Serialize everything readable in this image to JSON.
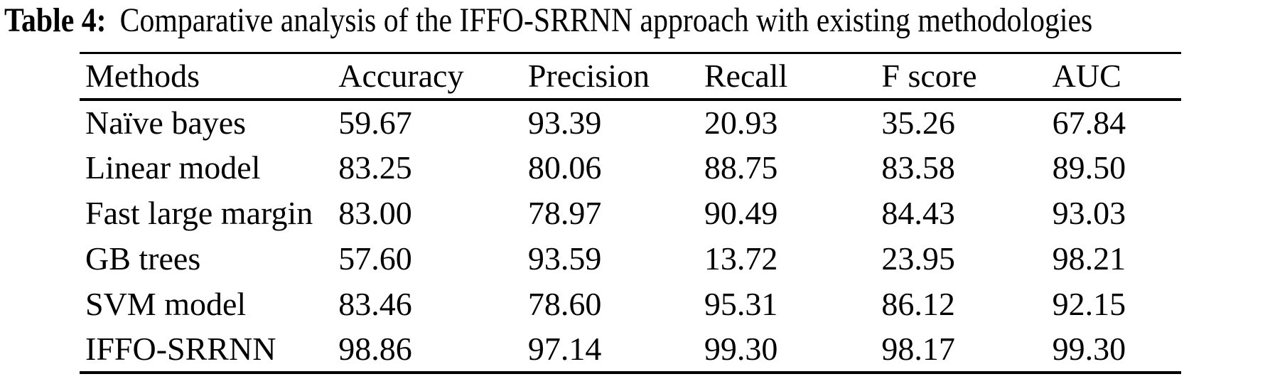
{
  "caption": {
    "label": "Table 4:",
    "text": "Comparative analysis of the IFFO-SRRNN approach with existing methodologies"
  },
  "chart_data": {
    "type": "table",
    "title": "Table 4: Comparative analysis of the IFFO-SRRNN approach with existing methodologies",
    "columns": [
      "Methods",
      "Accuracy",
      "Precision",
      "Recall",
      "F score",
      "AUC"
    ],
    "rows": [
      {
        "cells": [
          "Naïve bayes",
          "59.67",
          "93.39",
          "20.93",
          "35.26",
          "67.84"
        ]
      },
      {
        "cells": [
          "Linear model",
          "83.25",
          "80.06",
          "88.75",
          "83.58",
          "89.50"
        ]
      },
      {
        "cells": [
          "Fast large margin",
          "83.00",
          "78.97",
          "90.49",
          "84.43",
          "93.03"
        ]
      },
      {
        "cells": [
          "GB trees",
          "57.60",
          "93.59",
          "13.72",
          "23.95",
          "98.21"
        ]
      },
      {
        "cells": [
          "SVM model",
          "83.46",
          "78.60",
          "95.31",
          "86.12",
          "92.15"
        ]
      },
      {
        "cells": [
          "IFFO-SRRNN",
          "98.86",
          "97.14",
          "99.30",
          "98.17",
          "99.30"
        ]
      }
    ]
  }
}
